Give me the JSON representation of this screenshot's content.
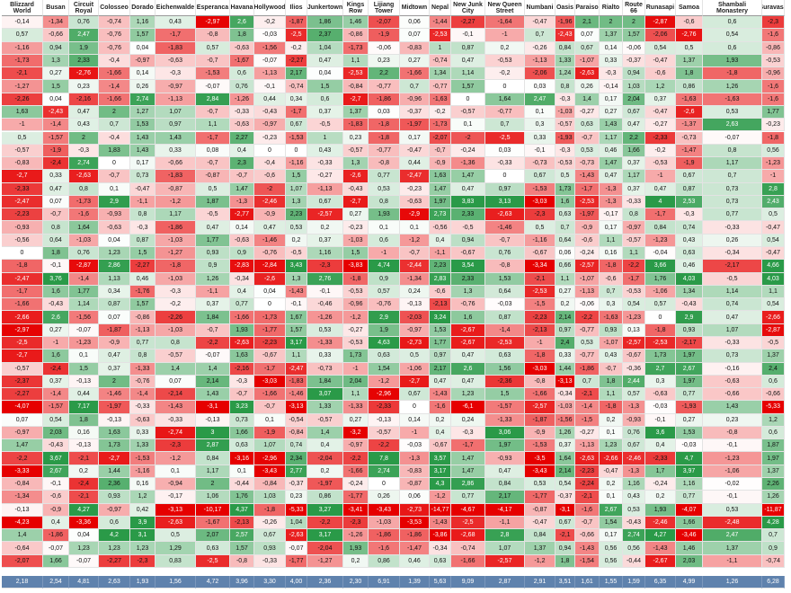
{
  "table": {
    "headers": [
      "Blizzard World",
      "Busan",
      "Circuit Royal",
      "Colosseo",
      "Dorado",
      "Eichenwalde",
      "Esperanca",
      "Havana",
      "Hollywood",
      "Ilios",
      "Junkertown",
      "Kings Row",
      "Lijiang Tower",
      "Midtown",
      "Nepal",
      "New Junk City",
      "New Queen Street",
      "Numbani",
      "Oasis",
      "Paraiso",
      "Rialto",
      "Route 66",
      "Runasapi",
      "Samoa",
      "Shambali Monastery",
      "Suravasa"
    ],
    "rows": [
      [
        "-0,14",
        "-1,34",
        "0,76",
        "-0,74",
        "1,16",
        "0,43",
        "-2,97",
        "2,6",
        "-0,2",
        "-1,87",
        "1,86",
        "1,46",
        "-2,07",
        "0,06",
        "-1,44",
        "-2,27",
        "-1,64",
        "-0,47",
        "-1,96",
        "2,1",
        "2",
        "2",
        "-2,87",
        "-0,6",
        "0,6",
        "-2,3"
      ],
      [
        "0,57",
        "-0,66",
        "2,47",
        "-0,76",
        "1,57",
        "-1,7",
        "-0,8",
        "1,8",
        "-0,03",
        "-2,5",
        "2,37",
        "-0,86",
        "-1,9",
        "0,07",
        "-2,53",
        "-0,1",
        "-1",
        "0,7",
        "-2,43",
        "0,07",
        "1,37",
        "1,57",
        "-2,06",
        "-2,76",
        "0,54",
        "-1,6"
      ],
      [
        "-1,16",
        "0,94",
        "1,9",
        "-0,76",
        "0,04",
        "-1,83",
        "0,57",
        "-0,63",
        "-1,56",
        "-0,2",
        "1,04",
        "-1,73",
        "-0,06",
        "-0,83",
        "1",
        "0,87",
        "0,2",
        "-0,26",
        "0,84",
        "0,67",
        "0,14",
        "-0,06",
        "0,54",
        "0,5",
        "0,6",
        "-0,86"
      ],
      [
        "-1,73",
        "1,3",
        "2,33",
        "-0,4",
        "-0,97",
        "-0,63",
        "-0,7",
        "-1,67",
        "-0,07",
        "-2,27",
        "0,47",
        "1,1",
        "0,23",
        "0,27",
        "-0,74",
        "0,47",
        "-0,53",
        "-1,13",
        "1,33",
        "-1,07",
        "0,33",
        "-0,37",
        "-0,47",
        "1,37",
        "1,93",
        "-0,53"
      ],
      [
        "-2,1",
        "0,27",
        "-2,76",
        "-1,66",
        "0,14",
        "-0,3",
        "-1,53",
        "0,6",
        "-1,13",
        "2,17",
        "0,04",
        "-2,53",
        "2,2",
        "-1,66",
        "1,34",
        "1,14",
        "-0,2",
        "-2,06",
        "1,24",
        "-2,63",
        "-0,3",
        "0,94",
        "-0,6",
        "1,8",
        "-1,8",
        "-0,96"
      ],
      [
        "-1,27",
        "1,5",
        "0,23",
        "-1,4",
        "0,26",
        "-0,97",
        "-0,07",
        "0,76",
        "-0,1",
        "-0,74",
        "1,5",
        "-0,84",
        "-0,77",
        "0,7",
        "-0,77",
        "1,57",
        "0",
        "0,03",
        "0,8",
        "0,26",
        "-0,14",
        "1,03",
        "1,2",
        "0,86",
        "1,26",
        "-1,6"
      ],
      [
        "-2,26",
        "0,04",
        "-2,16",
        "-1,66",
        "2,74",
        "-1,13",
        "2,84",
        "-1,26",
        "0,44",
        "0,34",
        "0,6",
        "-2,7",
        "-1,86",
        "-0,96",
        "-1,63",
        "0",
        "1,64",
        "2,47",
        "-0,3",
        "1,4",
        "0,17",
        "2,04",
        "0,37",
        "-1,63",
        "-1,63",
        "-1,6"
      ],
      [
        "1,63",
        "-2,43",
        "0,47",
        "2",
        "1,27",
        "1,07",
        "-0,7",
        "-0,33",
        "-0,43",
        "-1,7",
        "0,37",
        "1,37",
        "0,03",
        "-0,37",
        "-0,2",
        "-0,57",
        "-0,77",
        "0,1",
        "-1,03",
        "-0,27",
        "0,27",
        "0,67",
        "-0,47",
        "-2,6",
        "0,53",
        "1,77"
      ],
      [
        "-1",
        "-1,4",
        "0,43",
        "0,7",
        "1,53",
        "0,97",
        "1,1",
        "-0,63",
        "-0,97",
        "0,67",
        "-0,5",
        "-1,83",
        "-1,8",
        "-1,97",
        "-1,73",
        "0,1",
        "0,7",
        "0,3",
        "-0,57",
        "0,63",
        "1,43",
        "0,47",
        "-0,27",
        "-1,37",
        "2,63",
        "-0,23"
      ],
      [
        "0,5",
        "-1,57",
        "2",
        "-0,4",
        "1,43",
        "1,43",
        "-1,7",
        "2,27",
        "-0,23",
        "-1,53",
        "1",
        "0,23",
        "-1,8",
        "0,17",
        "-2,07",
        "-2",
        "-2,5",
        "0,33",
        "-1,93",
        "-0,7",
        "1,17",
        "2,2",
        "-2,33",
        "-0,73",
        "-0,07",
        "-1,8"
      ],
      [
        "-0,57",
        "-1,9",
        "-0,3",
        "1,83",
        "1,43",
        "0,33",
        "0,08",
        "0,4",
        "0",
        "0",
        "0,43",
        "-0,57",
        "-0,77",
        "-0,47",
        "-0,7",
        "-0,24",
        "0,03",
        "-0,1",
        "-0,3",
        "0,53",
        "0,46",
        "1,66",
        "-0,2",
        "-1,47",
        "0,8",
        "0,56"
      ],
      [
        "-0,83",
        "-2,4",
        "2,74",
        "0",
        "0,17",
        "-0,66",
        "-0,7",
        "2,3",
        "-0,4",
        "-1,16",
        "-0,33",
        "1,3",
        "-0,8",
        "0,44",
        "-0,9",
        "-1,36",
        "-0,33",
        "-0,73",
        "-0,53",
        "-0,73",
        "1,47",
        "0,37",
        "-0,53",
        "-1,9",
        "1,17",
        "-1,23"
      ],
      [
        "-2,7",
        "0,33",
        "-2,63",
        "-0,7",
        "0,73",
        "-1,83",
        "-0,87",
        "-0,7",
        "-0,6",
        "1,5",
        "-0,27",
        "-2,6",
        "0,77",
        "-2,47",
        "1,63",
        "1,47",
        "0",
        "0,67",
        "0,5",
        "-1,43",
        "0,47",
        "1,17",
        "-1",
        "0,67",
        "0,7",
        "-1"
      ],
      [
        "-2,33",
        "0,47",
        "0,8",
        "0,1",
        "-0,47",
        "-0,87",
        "0,5",
        "1,47",
        "-2",
        "1,07",
        "-1,13",
        "-0,43",
        "0,53",
        "-0,23",
        "1,47",
        "0,47",
        "0,97",
        "-1,53",
        "1,73",
        "-1,7",
        "-1,3",
        "0,37",
        "0,47",
        "0,87",
        "0,73",
        "2,8"
      ],
      [
        "-2,47",
        "0,07",
        "-1,73",
        "2,9",
        "-1,1",
        "-1,2",
        "1,87",
        "-1,3",
        "-2,46",
        "1,3",
        "0,67",
        "-2,7",
        "0,8",
        "-0,63",
        "1,97",
        "3,83",
        "3,13",
        "-3,03",
        "1,6",
        "-2,53",
        "-1,3",
        "-0,33",
        "4",
        "2,53",
        "0,73",
        "2,43"
      ],
      [
        "-2,23",
        "-0,7",
        "-1,6",
        "-0,93",
        "0,8",
        "1,17",
        "-0,5",
        "-2,77",
        "-0,9",
        "2,23",
        "-2,57",
        "0,27",
        "1,93",
        "-2,9",
        "2,73",
        "2,33",
        "-2,63",
        "-2,3",
        "0,63",
        "-1,97",
        "-0,17",
        "0,8",
        "-1,7",
        "-0,3",
        "0,77",
        "0,5"
      ],
      [
        "-0,93",
        "0,8",
        "1,64",
        "-0,63",
        "-0,3",
        "-1,86",
        "0,47",
        "0,14",
        "0,47",
        "0,53",
        "0,2",
        "-0,23",
        "0,1",
        "0,1",
        "-0,56",
        "-0,5",
        "-1,46",
        "0,5",
        "0,7",
        "-0,9",
        "0,17",
        "-0,97",
        "0,84",
        "0,74",
        "-0,33",
        "-0,47"
      ],
      [
        "-0,56",
        "0,64",
        "-1,03",
        "0,04",
        "0,87",
        "-1,03",
        "1,77",
        "-0,63",
        "-1,46",
        "0,2",
        "0,37",
        "-1,03",
        "0,6",
        "-1,2",
        "0,4",
        "0,94",
        "-0,7",
        "-1,16",
        "0,64",
        "-0,6",
        "1,1",
        "-0,57",
        "-1,23",
        "0,43",
        "0,26",
        "0,54"
      ],
      [
        "0",
        "1,8",
        "0,76",
        "1,23",
        "1,5",
        "-1,27",
        "0,93",
        "0,9",
        "-0,76",
        "-0,5",
        "1,16",
        "1,5",
        "-1",
        "-0,7",
        "-1,1",
        "-0,67",
        "0,76",
        "-0,67",
        "0,06",
        "-0,24",
        "0,16",
        "1,1",
        "-0,04",
        "0,63",
        "-0,34",
        "-0,47"
      ],
      [
        "-1,8",
        "-0,1",
        "-2,87",
        "2,86",
        "-2,27",
        "-1,8",
        "0,9",
        "-2,83",
        "-2,84",
        "3,43",
        "-2,3",
        "-3,83",
        "4,74",
        "-2,44",
        "2,23",
        "3,54",
        "-0,8",
        "-3,34",
        "0,66",
        "-2,57",
        "-1,8",
        "-2,2",
        "3,66",
        "0,46",
        "-2,17",
        "4,66"
      ],
      [
        "-2,47",
        "3,76",
        "-1,4",
        "1,13",
        "0,46",
        "-1,03",
        "1,26",
        "-0,34",
        "-2,6",
        "1,3",
        "2,76",
        "-1,8",
        "0,9",
        "-1,34",
        "2,83",
        "2,33",
        "1,53",
        "-2,1",
        "1,1",
        "-1,07",
        "-0,6",
        "-1,7",
        "1,76",
        "4,03",
        "-0,5",
        "4,03"
      ],
      [
        "-1,7",
        "1,6",
        "1,77",
        "0,34",
        "-1,76",
        "-0,3",
        "-1,1",
        "0,4",
        "0,04",
        "-1,43",
        "-0,1",
        "-0,53",
        "0,57",
        "0,24",
        "-0,6",
        "1,3",
        "0,64",
        "-2,53",
        "0,27",
        "-1,13",
        "0,7",
        "-0,53",
        "-1,06",
        "1,34",
        "1,14",
        "1,1"
      ],
      [
        "-1,66",
        "-0,43",
        "1,14",
        "0,87",
        "1,57",
        "-0,2",
        "0,37",
        "0,77",
        "0",
        "-0,1",
        "-0,46",
        "-0,96",
        "-0,76",
        "-0,13",
        "-2,13",
        "-0,76",
        "-0,03",
        "-1,5",
        "0,2",
        "-0,06",
        "0,3",
        "0,54",
        "0,57",
        "-0,43",
        "0,74",
        "0,54"
      ],
      [
        "-2,66",
        "2,6",
        "-1,56",
        "0,07",
        "-0,86",
        "-2,26",
        "1,84",
        "-1,66",
        "-1,73",
        "1,67",
        "-1,26",
        "-1,2",
        "2,9",
        "-2,03",
        "3,24",
        "1,6",
        "0,87",
        "-2,23",
        "2,14",
        "-2,2",
        "-1,63",
        "-1,23",
        "0",
        "2,9",
        "0,47",
        "-2,66"
      ],
      [
        "-2,97",
        "0,27",
        "-0,07",
        "-1,87",
        "-1,13",
        "-1,03",
        "-0,7",
        "1,93",
        "-1,77",
        "1,57",
        "0,53",
        "-0,27",
        "1,9",
        "-0,97",
        "1,53",
        "-2,67",
        "-1,4",
        "-2,13",
        "0,97",
        "-0,77",
        "0,93",
        "0,13",
        "-1,8",
        "0,93",
        "1,07",
        "-2,87"
      ],
      [
        "-2,5",
        "-1",
        "-1,23",
        "-0,9",
        "0,77",
        "0,8",
        "-2,2",
        "-2,63",
        "-2,23",
        "3,17",
        "-1,33",
        "-0,53",
        "4,63",
        "-2,73",
        "1,77",
        "-2,67",
        "-2,53",
        "-1",
        "2,4",
        "0,53",
        "-1,07",
        "-2,57",
        "-2,53",
        "-2,17",
        "-0,33",
        "-0,5"
      ],
      [
        "-2,7",
        "1,6",
        "0,1",
        "0,47",
        "0,8",
        "-0,57",
        "-0,07",
        "1,63",
        "-0,67",
        "1,1",
        "0,33",
        "1,73",
        "0,63",
        "0,5",
        "0,97",
        "0,47",
        "0,63",
        "-1,8",
        "0,33",
        "-0,77",
        "0,43",
        "-0,67",
        "1,73",
        "1,97",
        "0,73",
        "1,37"
      ],
      [
        "-0,57",
        "-2,4",
        "1,5",
        "0,37",
        "-1,33",
        "1,4",
        "1,4",
        "-2,16",
        "-1,7",
        "-2,47",
        "-0,73",
        "-1",
        "1,54",
        "-1,06",
        "2,17",
        "2,6",
        "1,56",
        "-3,03",
        "1,44",
        "-1,86",
        "-0,7",
        "-0,36",
        "2,7",
        "2,67",
        "-0,16",
        "2,4"
      ],
      [
        "-2,37",
        "0,37",
        "-0,13",
        "2",
        "-0,76",
        "0,07",
        "2,14",
        "-0,3",
        "-3,03",
        "-1,83",
        "1,84",
        "2,04",
        "-1,2",
        "-2,7",
        "0,47",
        "0,47",
        "-2,36",
        "-0,8",
        "-3,13",
        "0,7",
        "1,8",
        "2,44",
        "0,3",
        "1,97",
        "-0,63",
        "0,6"
      ],
      [
        "-2,27",
        "-1,4",
        "0,44",
        "-1,46",
        "-1,4",
        "-2,14",
        "1,43",
        "-0,7",
        "-1,66",
        "-1,46",
        "3,07",
        "1,1",
        "-2,96",
        "0,67",
        "-1,43",
        "1,23",
        "1,5",
        "-1,66",
        "-0,34",
        "-2,1",
        "1,1",
        "0,57",
        "-0,63",
        "0,77",
        "-0,66",
        "-0,66"
      ],
      [
        "-4,07",
        "-1,57",
        "7,17",
        "-1,97",
        "-0,33",
        "-1,43",
        "-3,1",
        "3,23",
        "-0,7",
        "-3,13",
        "1,33",
        "-1,33",
        "-2,33",
        "0",
        "-1,6",
        "-6,1",
        "-1,57",
        "-2,57",
        "-1,03",
        "-1,4",
        "-1,8",
        "-1,3",
        "-0,03",
        "-1,93",
        "1,43",
        "-5,33"
      ],
      [
        "0,07",
        "0,54",
        "1,8",
        "-0,13",
        "-0,63",
        "-0,33",
        "-0,13",
        "0,73",
        "0,1",
        "-0,54",
        "-0,57",
        "0,27",
        "-0,13",
        "0,14",
        "0,2",
        "0,24",
        "-1,33",
        "-1,87",
        "-1,56",
        "-1,5",
        "0,2",
        "-0,93",
        "-0,1",
        "0,27",
        "0,23",
        "1,2"
      ],
      [
        "-0,97",
        "2,03",
        "0,16",
        "1,63",
        "0,33",
        "-2,74",
        "3",
        "1,66",
        "-1,9",
        "-0,84",
        "1,4",
        "-3,2",
        "-0,57",
        "-1",
        "0,4",
        "-0,3",
        "3,06",
        "-0,9",
        "1,26",
        "-0,27",
        "0,1",
        "0,76",
        "3,6",
        "1,53",
        "-0,8",
        "0,6"
      ],
      [
        "1,47",
        "-0,43",
        "-0,13",
        "1,73",
        "1,33",
        "-2,3",
        "2,87",
        "0,63",
        "1,07",
        "0,74",
        "0,4",
        "-0,97",
        "-2,2",
        "-0,03",
        "-0,67",
        "-1,7",
        "1,97",
        "-1,53",
        "0,37",
        "-1,13",
        "1,23",
        "0,67",
        "0,4",
        "-0,03",
        "-0,1",
        "1,87"
      ],
      [
        "-2,2",
        "3,67",
        "-2,1",
        "-2,7",
        "-1,53",
        "-1,2",
        "0,84",
        "-3,16",
        "-2,96",
        "2,34",
        "-2,04",
        "-2,2",
        "7,8",
        "-1,3",
        "3,57",
        "1,47",
        "-0,93",
        "-3,5",
        "1,64",
        "-2,63",
        "-2,66",
        "-2,46",
        "-2,33",
        "4,7",
        "-1,23",
        "1,97"
      ],
      [
        "-3,33",
        "2,67",
        "0,2",
        "1,44",
        "-1,16",
        "0,1",
        "1,17",
        "0,1",
        "-3,43",
        "2,77",
        "0,2",
        "-1,66",
        "2,74",
        "-0,83",
        "3,17",
        "1,47",
        "0,47",
        "-3,43",
        "2,14",
        "-2,23",
        "-0,47",
        "-1,3",
        "1,7",
        "3,97",
        "-1,06",
        "1,37"
      ],
      [
        "-0,84",
        "-0,1",
        "-2,4",
        "2,36",
        "0,16",
        "-0,94",
        "2",
        "-0,44",
        "-0,84",
        "-0,37",
        "-1,97",
        "-0,24",
        "0",
        "-0,87",
        "4,3",
        "2,86",
        "0,84",
        "0,53",
        "0,54",
        "-2,24",
        "0,2",
        "1,16",
        "-0,24",
        "1,16",
        "-0,02",
        "2,26"
      ],
      [
        "-1,34",
        "-0,6",
        "-2,1",
        "0,93",
        "1,2",
        "-0,17",
        "1,06",
        "1,76",
        "1,03",
        "0,23",
        "0,86",
        "-1,77",
        "0,26",
        "0,06",
        "-1,2",
        "0,77",
        "2,17",
        "-1,77",
        "-0,37",
        "-2,1",
        "0,1",
        "0,43",
        "0,2",
        "0,77",
        "-0,1",
        "1,26"
      ],
      [
        "-0,13",
        "-0,9",
        "4,27",
        "-0,97",
        "0,42",
        "-3,13",
        "-10,17",
        "4,37",
        "-1,8",
        "-5,33",
        "3,27",
        "-3,41",
        "-3,43",
        "-2,73",
        "-14,77",
        "-4,67",
        "-4,17",
        "-0,87",
        "-3,1",
        "-1,6",
        "2,67",
        "0,53",
        "1,93",
        "-4,07",
        "0,53",
        "-11,87"
      ],
      [
        "-4,23",
        "0,4",
        "-3,36",
        "0,6",
        "3,9",
        "-2,63",
        "-1,67",
        "-2,13",
        "-0,26",
        "1,04",
        "-2,2",
        "-2,3",
        "-1,03",
        "-3,53",
        "-1,43",
        "-2,5",
        "-1,1",
        "-0,47",
        "0,67",
        "-0,7",
        "1,54",
        "-0,43",
        "-2,46",
        "1,66",
        "-2,48",
        "4,28"
      ],
      [
        "1,4",
        "-1,86",
        "0,04",
        "4,2",
        "3,1",
        "0,5",
        "2,07",
        "2,57",
        "0,67",
        "-2,63",
        "3,17",
        "-1,26",
        "-1,86",
        "-1,86",
        "-3,86",
        "-2,68",
        "2,8",
        "0,84",
        "-2,1",
        "-0,66",
        "0,17",
        "2,74",
        "4,27",
        "-3,46",
        "2,47",
        "0,7"
      ],
      [
        "-0,64",
        "-0,07",
        "1,23",
        "1,23",
        "1,23",
        "1,29",
        "0,63",
        "1,57",
        "0,93",
        "-0,07",
        "-2,04",
        "1,93",
        "-1,6",
        "-1,47",
        "-0,34",
        "-0,74",
        "1,07",
        "1,37",
        "0,94",
        "-1,43",
        "0,56",
        "0,56",
        "-1,43",
        "1,46",
        "1,37",
        "0,9"
      ],
      [
        "-2,07",
        "1,66",
        "-0,07",
        "-2,27",
        "-2,3",
        "0,83",
        "-2,5",
        "-0,8",
        "-0,33",
        "-1,77",
        "-1,27",
        "0,2",
        "0,86",
        "0,46",
        "0,63",
        "-1,66",
        "-2,57",
        "-1,2",
        "1,8",
        "-1,54",
        "0,56",
        "-0,44",
        "-2,67",
        "2,03",
        "-1,1",
        "-0,74"
      ]
    ],
    "footer": [
      "2,18",
      "2,54",
      "4,81",
      "2,63",
      "1,93",
      "1,56",
      "4,72",
      "3,96",
      "3,30",
      "4,00",
      "2,36",
      "2,30",
      "6,91",
      "1,39",
      "5,63",
      "9,09",
      "2,87",
      "2,91",
      "3,51",
      "1,61",
      "1,55",
      "1,59",
      "6,35",
      "4,99",
      "1,26",
      "6,28"
    ],
    "negative_color": "#e60000",
    "positive_color": "#2a9a48",
    "footer_color": "#5f82ad"
  }
}
